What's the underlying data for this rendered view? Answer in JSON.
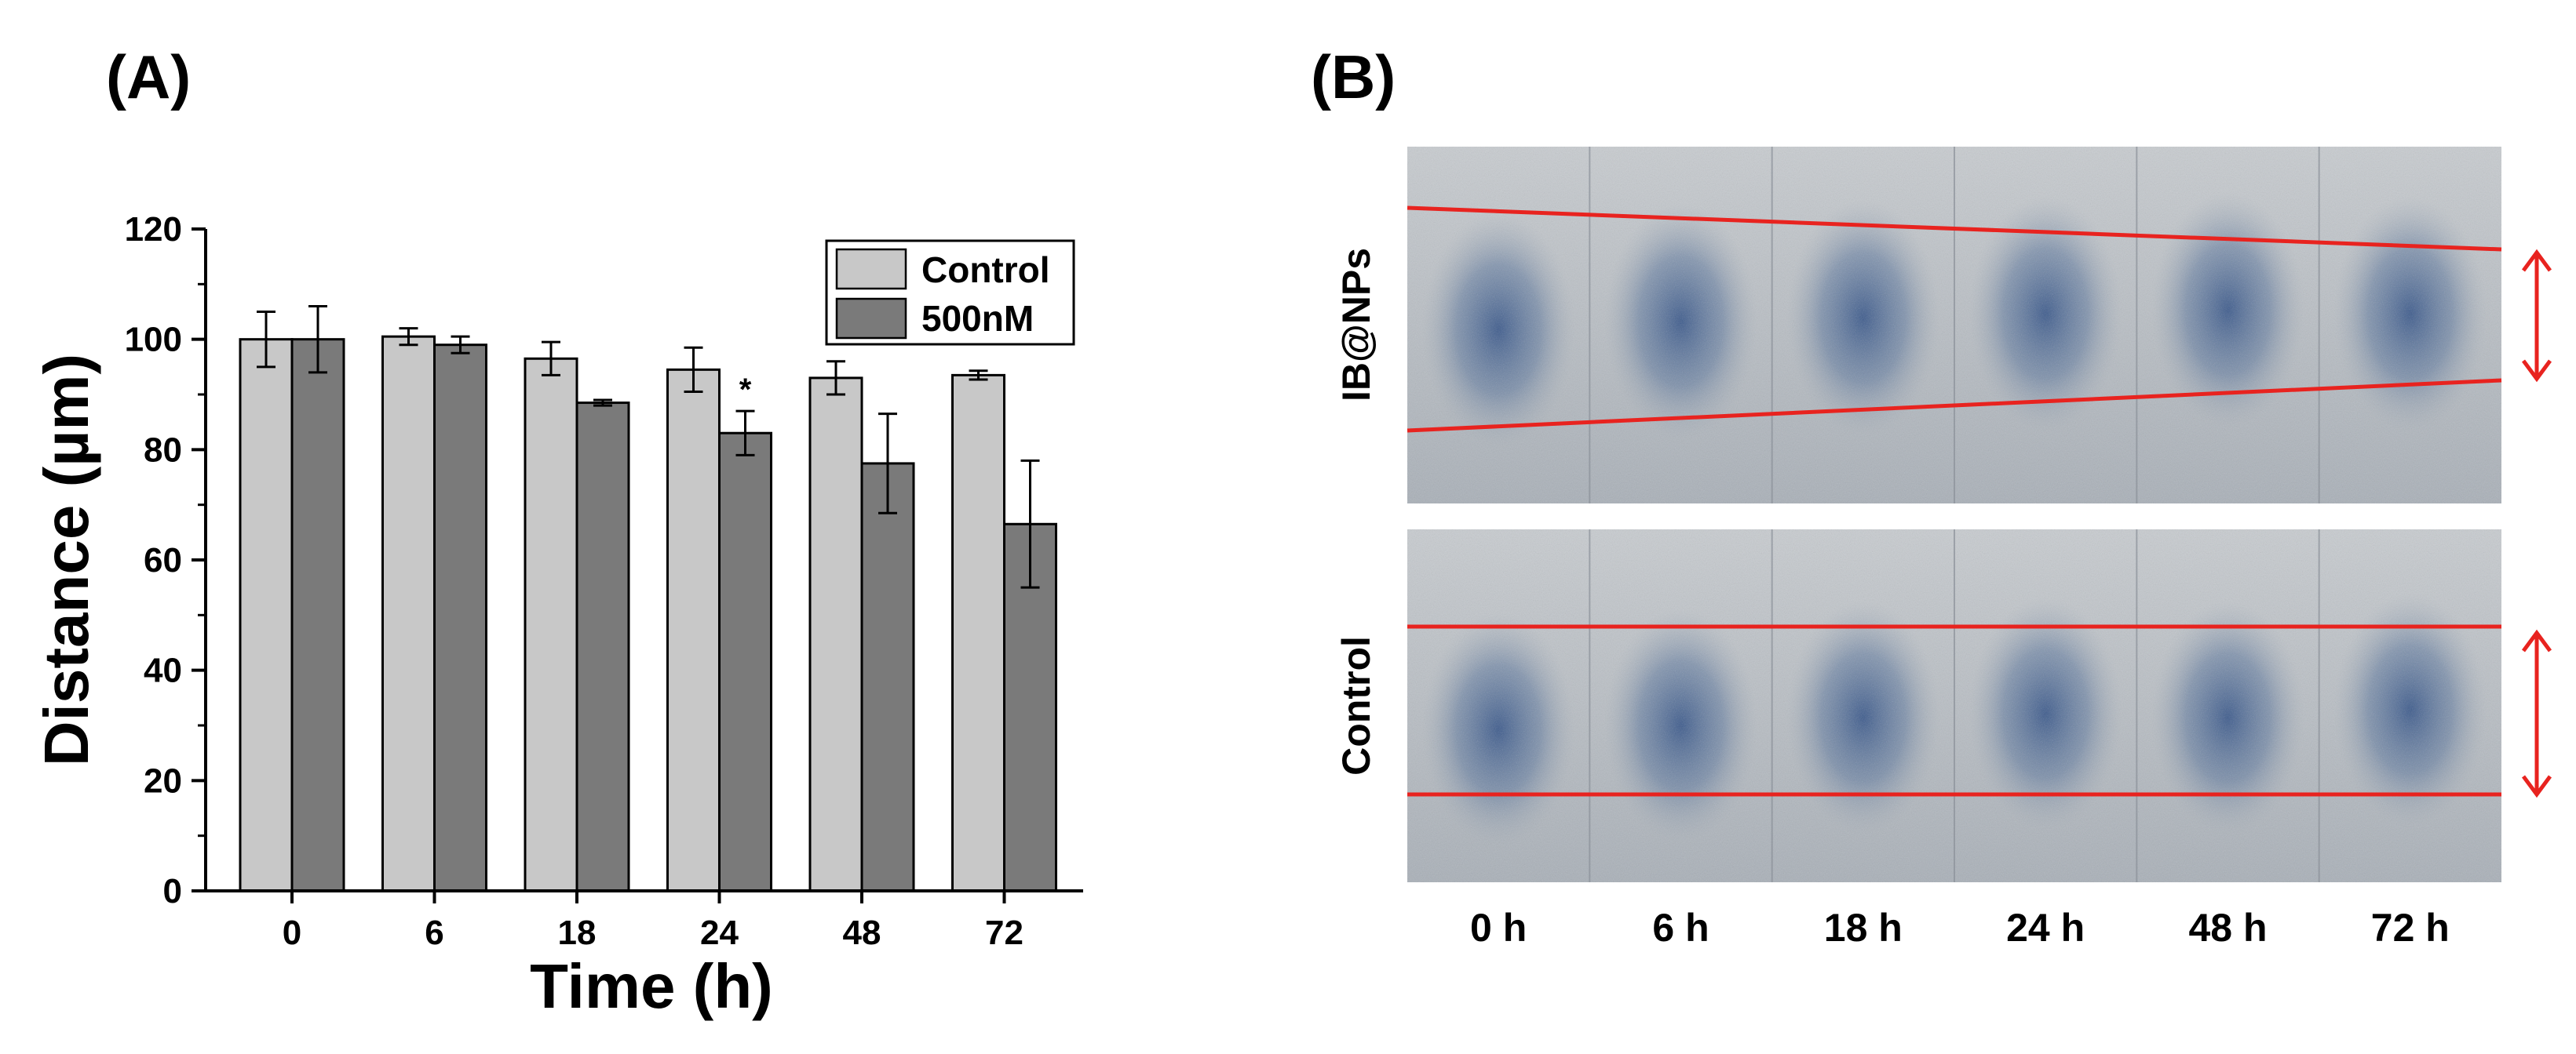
{
  "panel_a_label": "(A)",
  "panel_b_label": "(B)",
  "chart_data": {
    "type": "bar",
    "title": "",
    "xlabel": "Time (h)",
    "ylabel": "Distance (µm)",
    "categories": [
      "0",
      "6",
      "18",
      "24",
      "48",
      "72"
    ],
    "ylim": [
      0,
      120
    ],
    "yticks": [
      "0",
      "20",
      "40",
      "60",
      "80",
      "100",
      "120"
    ],
    "legend_position": "top-right",
    "series": [
      {
        "name": "Control",
        "color": "#c8c8c8",
        "values": [
          100,
          100.5,
          96.5,
          94.5,
          93,
          93.5
        ],
        "errors": [
          5,
          1.5,
          3,
          4,
          3,
          0.8
        ]
      },
      {
        "name": "500nM",
        "color": "#7a7a7a",
        "values": [
          100,
          99,
          88.5,
          83,
          77.5,
          66.5
        ],
        "errors": [
          6,
          1.5,
          0.5,
          4,
          9,
          11.5
        ]
      }
    ],
    "annotations": [
      {
        "text": "*",
        "category": "24",
        "series": "500nM"
      }
    ]
  },
  "micrograph": {
    "row_labels": [
      "IB@NPs",
      "Control"
    ],
    "time_labels": [
      "0 h",
      "6 h",
      "18 h",
      "24 h",
      "48 h",
      "72 h"
    ],
    "line_color": "#e8231f",
    "scratch_color": "#2e4f86"
  }
}
